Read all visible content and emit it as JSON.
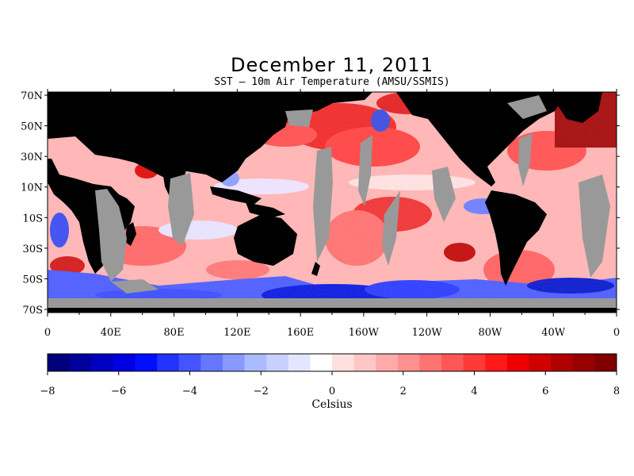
{
  "map": {
    "title": "December 11, 2011",
    "subtitle": "SST – 10m Air Temperature (AMSU/SSMIS)",
    "lat_labels": [
      "70N",
      "50N",
      "30N",
      "10N",
      "10S",
      "30S",
      "50S",
      "70S"
    ],
    "lon_labels": [
      "0",
      "40E",
      "80E",
      "120E",
      "160E",
      "160W",
      "120W",
      "80W",
      "40W",
      "0"
    ]
  },
  "colorbar": {
    "label": "Celsius",
    "tick_labels": [
      "−8",
      "−6",
      "−4",
      "−2",
      "0",
      "2",
      "4",
      "6",
      "8"
    ],
    "range": [
      -8,
      8
    ],
    "colors": [
      "#00007a",
      "#00009c",
      "#0000c0",
      "#0000e0",
      "#0010ff",
      "#2233ff",
      "#4455ff",
      "#6677ff",
      "#8899ff",
      "#aabbff",
      "#c8d0ff",
      "#e2e6ff",
      "#ffffff",
      "#ffe0e0",
      "#ffc6c6",
      "#ffaaaa",
      "#ff9090",
      "#ff7272",
      "#ff5656",
      "#ff3838",
      "#ff1818",
      "#ee0000",
      "#d00000",
      "#b00000",
      "#980000",
      "#800000"
    ]
  },
  "legend_colors": {
    "land": "#000000",
    "no_data": "#999999"
  }
}
